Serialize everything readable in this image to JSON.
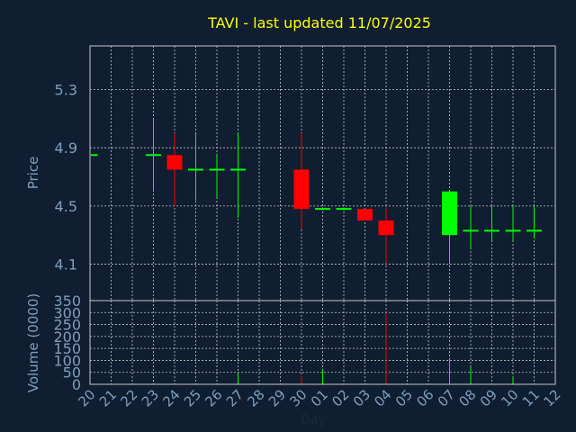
{
  "chart_data": {
    "type": "candlestick",
    "title": "TAVI - last updated 11/07/2025",
    "xlabel": "Day",
    "x_tick_labels": [
      "20",
      "21",
      "22",
      "23",
      "24",
      "25",
      "26",
      "27",
      "28",
      "29",
      "30",
      "01",
      "02",
      "03",
      "04",
      "05",
      "06",
      "07",
      "08",
      "09",
      "10",
      "11",
      "12"
    ],
    "price_panel": {
      "ylabel": "Price",
      "ylim": [
        3.85,
        5.6
      ],
      "yticks": [
        "4.1",
        "4.5",
        "4.9",
        "5.3"
      ],
      "candles": [
        {
          "day": "20",
          "open": 4.85,
          "high": 4.85,
          "low": 4.85,
          "close": 4.85
        },
        {
          "day": "23",
          "open": 4.85,
          "high": 5.1,
          "low": 4.6,
          "close": 4.85
        },
        {
          "day": "24",
          "open": 4.85,
          "high": 5.0,
          "low": 4.5,
          "close": 4.75
        },
        {
          "day": "25",
          "open": 4.75,
          "high": 5.0,
          "low": 4.54,
          "close": 4.75
        },
        {
          "day": "26",
          "open": 4.75,
          "high": 4.86,
          "low": 4.55,
          "close": 4.75
        },
        {
          "day": "27",
          "open": 4.75,
          "high": 5.0,
          "low": 4.42,
          "close": 4.75
        },
        {
          "day": "30",
          "open": 4.75,
          "high": 5.0,
          "low": 4.34,
          "close": 4.48
        },
        {
          "day": "01",
          "open": 4.48,
          "high": 4.49,
          "low": 4.47,
          "close": 4.48
        },
        {
          "day": "02",
          "open": 4.48,
          "high": 4.49,
          "low": 4.47,
          "close": 4.48
        },
        {
          "day": "03",
          "open": 4.48,
          "high": 4.48,
          "low": 4.4,
          "close": 4.4
        },
        {
          "day": "04",
          "open": 4.4,
          "high": 4.49,
          "low": 4.1,
          "close": 4.3
        },
        {
          "day": "07",
          "open": 4.3,
          "high": 4.6,
          "low": 4.1,
          "close": 4.6
        },
        {
          "day": "08",
          "open": 4.33,
          "high": 4.5,
          "low": 4.2,
          "close": 4.33
        },
        {
          "day": "09",
          "open": 4.33,
          "high": 4.5,
          "low": 4.26,
          "close": 4.33
        },
        {
          "day": "10",
          "open": 4.33,
          "high": 4.5,
          "low": 4.26,
          "close": 4.33
        },
        {
          "day": "11",
          "open": 4.33,
          "high": 4.5,
          "low": 4.28,
          "close": 4.33
        }
      ]
    },
    "volume_panel": {
      "ylabel": "Volume (0000)",
      "ylim": [
        0,
        350
      ],
      "yticks": [
        "0",
        "50",
        "100",
        "150",
        "200",
        "250",
        "300",
        "350"
      ],
      "bars": [
        {
          "day": "27",
          "value": 45,
          "direction": "up"
        },
        {
          "day": "30",
          "value": 35,
          "direction": "down"
        },
        {
          "day": "01",
          "value": 60,
          "direction": "up"
        },
        {
          "day": "04",
          "value": 300,
          "direction": "down"
        },
        {
          "day": "07",
          "value": 100,
          "direction": "up"
        },
        {
          "day": "08",
          "value": 75,
          "direction": "up"
        },
        {
          "day": "10",
          "value": 35,
          "direction": "up"
        }
      ]
    },
    "grid": true,
    "colors": {
      "background": "#0f1e30",
      "up": "#00ff00",
      "down": "#ff0000",
      "grid": "#c8c8c8",
      "axis_text": "#7f9fbf",
      "title": "#ffff00"
    }
  }
}
